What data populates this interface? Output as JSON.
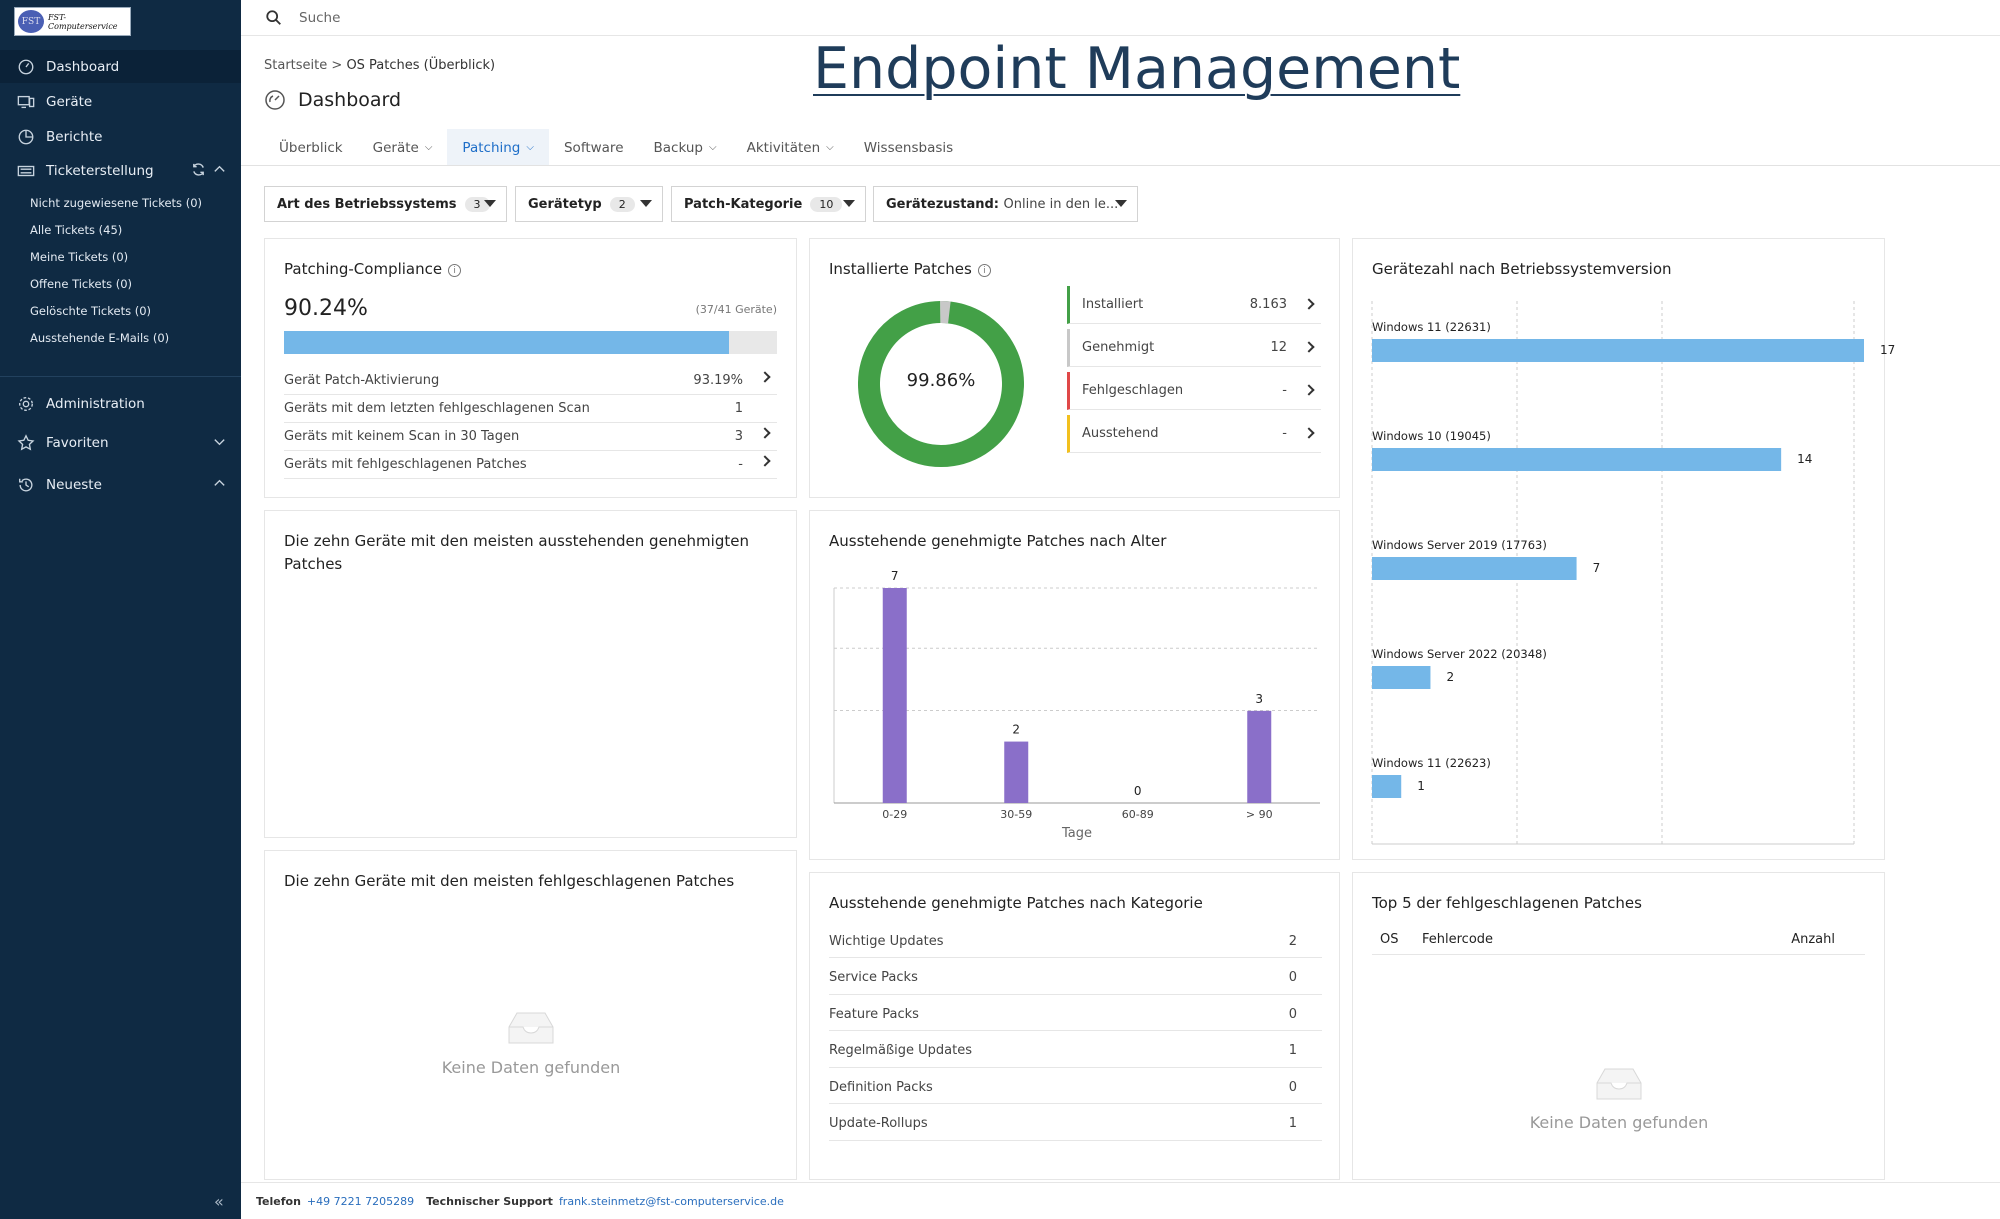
{
  "logo": {
    "badge": "FST",
    "line1": "FST-",
    "line2": "Computerservice"
  },
  "sidebar": {
    "items": [
      {
        "label": "Dashboard",
        "icon": "dashboard-icon"
      },
      {
        "label": "Geräte",
        "icon": "devices-icon"
      },
      {
        "label": "Berichte",
        "icon": "reports-icon"
      },
      {
        "label": "Ticketerstellung",
        "icon": "ticket-icon"
      }
    ],
    "ticket_subitems": [
      "Nicht zugewiesene Tickets (0)",
      "Alle Tickets (45)",
      "Meine Tickets (0)",
      "Offene Tickets (0)",
      "Gelöschte Tickets (0)",
      "Ausstehende E-Mails (0)"
    ],
    "bottom_items": [
      {
        "label": "Administration",
        "icon": "gear-icon"
      },
      {
        "label": "Favoriten",
        "icon": "star-icon"
      },
      {
        "label": "Neueste",
        "icon": "history-icon"
      }
    ]
  },
  "search": {
    "placeholder": "Suche"
  },
  "breadcrumb": {
    "home": "Startseite",
    "sep": ">",
    "current": "OS Patches (Überblick)"
  },
  "overlay_title": "Endpoint Management",
  "page_title": "Dashboard",
  "tabs": [
    "Überblick",
    "Geräte",
    "Patching",
    "Software",
    "Backup",
    "Aktivitäten",
    "Wissensbasis"
  ],
  "filters": [
    {
      "label": "Art des Betriebssystems",
      "count": "3"
    },
    {
      "label": "Gerätetyp",
      "count": "2"
    },
    {
      "label": "Patch-Kategorie",
      "count": "10"
    },
    {
      "label": "Gerätezustand:",
      "value": "Online in den le..."
    }
  ],
  "compliance": {
    "title": "Patching-Compliance",
    "percent": "90.24%",
    "devices": "(37/41 Geräte)",
    "fill_fraction": 0.9024,
    "rows": [
      {
        "label": "Gerät Patch-Aktivierung",
        "value": "93.19%"
      },
      {
        "label": "Geräts mit dem letzten fehlgeschlagenen Scan",
        "value": "1"
      },
      {
        "label": "Geräts mit keinem Scan in 30 Tagen",
        "value": "3"
      },
      {
        "label": "Geräts mit fehlgeschlagenen Patches",
        "value": "-"
      }
    ]
  },
  "installed": {
    "title": "Installierte Patches",
    "donut_label": "99.86%",
    "rows": [
      {
        "label": "Installiert",
        "value": "8.163",
        "color": "#43a047"
      },
      {
        "label": "Genehmigt",
        "value": "12",
        "color": "#c8c8c8"
      },
      {
        "label": "Fehlgeschlagen",
        "value": "-",
        "color": "#e04848"
      },
      {
        "label": "Ausstehend",
        "value": "-",
        "color": "#f2c01e"
      }
    ]
  },
  "top10_pending": {
    "title": "Die zehn Geräte mit den meisten ausstehenden genehmigten Patches"
  },
  "top10_failed": {
    "title": "Die zehn Geräte mit den meisten fehlgeschlagenen Patches",
    "empty": "Keine Daten gefunden"
  },
  "category": {
    "title": "Ausstehende genehmigte Patches nach Kategorie",
    "rows": [
      {
        "label": "Wichtige Updates",
        "value": "2"
      },
      {
        "label": "Service Packs",
        "value": "0"
      },
      {
        "label": "Feature Packs",
        "value": "0"
      },
      {
        "label": "Regelmäßige Updates",
        "value": "1"
      },
      {
        "label": "Definition Packs",
        "value": "0"
      },
      {
        "label": "Update-Rollups",
        "value": "1"
      }
    ]
  },
  "top5": {
    "title": "Top 5 der fehlgeschlagenen Patches",
    "col_os": "OS",
    "col_code": "Fehlercode",
    "col_count": "Anzahl",
    "empty": "Keine Daten gefunden"
  },
  "footer": {
    "phone_label": "Telefon",
    "phone": "+49 7221 7205289",
    "support_label": "Technischer Support",
    "email": "frank.steinmetz@fst-computerservice.de"
  },
  "chart_data": [
    {
      "type": "pie",
      "title": "Installierte Patches",
      "categories": [
        "Installiert",
        "Genehmigt"
      ],
      "values": [
        8163,
        12
      ],
      "center_label": "99.86%"
    },
    {
      "type": "bar",
      "title": "Ausstehende genehmigte Patches nach Alter",
      "categories": [
        "0-29",
        "30-59",
        "60-89",
        "> 90"
      ],
      "values": [
        7,
        2,
        0,
        3
      ],
      "xlabel": "Tage",
      "ylabel": "",
      "ylim": [
        0,
        7
      ],
      "color": "#8a6fc9"
    },
    {
      "type": "bar",
      "orientation": "horizontal",
      "title": "Gerätezahl nach Betriebssystemversion",
      "categories": [
        "Windows 11 (22631)",
        "Windows 10 (19045)",
        "Windows Server 2019 (17763)",
        "Windows Server 2022 (20348)",
        "Windows 11 (22623)"
      ],
      "values": [
        17,
        14,
        7,
        2,
        1
      ],
      "xlim": [
        0,
        20
      ],
      "color": "#74b7e8"
    }
  ]
}
